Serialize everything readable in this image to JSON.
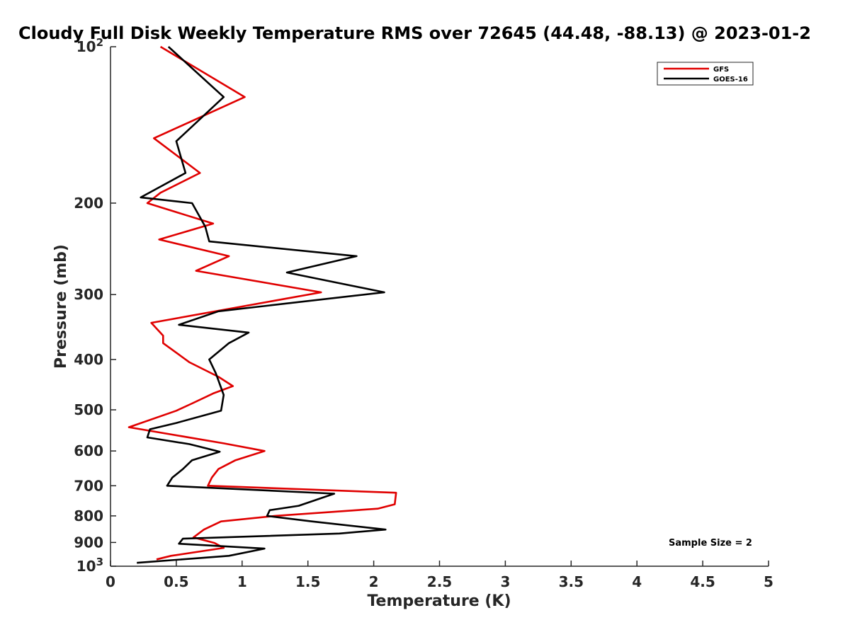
{
  "chart_data": {
    "type": "line",
    "title": "Cloudy Full Disk Weekly Temperature RMS over 72645 (44.48, -88.13) @ 2023-01-2",
    "xlabel": "Temperature (K)",
    "ylabel": "Pressure (mb)",
    "xlim": [
      0,
      5
    ],
    "ylim": [
      100,
      1000
    ],
    "yscale": "log",
    "y_reversed": true,
    "grid": false,
    "legend_position": "top-right",
    "x_ticks": [
      "0",
      "0.5",
      "1",
      "1.5",
      "2",
      "2.5",
      "3",
      "3.5",
      "4",
      "4.5",
      "5"
    ],
    "x_tick_values": [
      0,
      0.5,
      1,
      1.5,
      2,
      2.5,
      3,
      3.5,
      4,
      4.5,
      5
    ],
    "y_ticks": [
      {
        "value": 100,
        "label": "10",
        "sup": "2"
      },
      {
        "value": 200,
        "label": "200",
        "sup": ""
      },
      {
        "value": 300,
        "label": "300",
        "sup": ""
      },
      {
        "value": 400,
        "label": "400",
        "sup": ""
      },
      {
        "value": 500,
        "label": "500",
        "sup": ""
      },
      {
        "value": 600,
        "label": "600",
        "sup": ""
      },
      {
        "value": 700,
        "label": "700",
        "sup": ""
      },
      {
        "value": 800,
        "label": "800",
        "sup": ""
      },
      {
        "value": 900,
        "label": "900",
        "sup": ""
      },
      {
        "value": 1000,
        "label": "10",
        "sup": "3"
      }
    ],
    "series": [
      {
        "name": "GFS",
        "color": "#e00000",
        "points": [
          [
            0.38,
            100
          ],
          [
            1.02,
            125
          ],
          [
            0.33,
            150
          ],
          [
            0.68,
            175
          ],
          [
            0.38,
            191
          ],
          [
            0.28,
            200
          ],
          [
            0.78,
            219
          ],
          [
            0.37,
            235
          ],
          [
            0.9,
            253
          ],
          [
            0.65,
            270
          ],
          [
            1.6,
            297
          ],
          [
            0.31,
            340
          ],
          [
            0.4,
            360
          ],
          [
            0.4,
            372
          ],
          [
            0.6,
            405
          ],
          [
            0.82,
            432
          ],
          [
            0.93,
            450
          ],
          [
            0.78,
            465
          ],
          [
            0.62,
            486
          ],
          [
            0.5,
            502
          ],
          [
            0.14,
            540
          ],
          [
            0.86,
            580
          ],
          [
            1.17,
            600
          ],
          [
            0.95,
            625
          ],
          [
            0.82,
            650
          ],
          [
            0.77,
            675
          ],
          [
            0.74,
            700
          ],
          [
            2.17,
            722
          ],
          [
            2.16,
            760
          ],
          [
            2.03,
            775
          ],
          [
            1.25,
            800
          ],
          [
            0.84,
            820
          ],
          [
            0.71,
            850
          ],
          [
            0.63,
            880
          ],
          [
            0.79,
            902
          ],
          [
            0.86,
            922
          ],
          [
            0.46,
            955
          ],
          [
            0.35,
            970
          ]
        ]
      },
      {
        "name": "GOES-16",
        "color": "#000000",
        "points": [
          [
            0.44,
            100
          ],
          [
            0.86,
            125
          ],
          [
            0.5,
            152
          ],
          [
            0.57,
            175
          ],
          [
            0.23,
            195
          ],
          [
            0.62,
            200
          ],
          [
            0.72,
            222
          ],
          [
            0.75,
            237
          ],
          [
            1.87,
            253
          ],
          [
            1.34,
            272
          ],
          [
            2.08,
            297
          ],
          [
            0.82,
            323
          ],
          [
            0.52,
            343
          ],
          [
            1.05,
            355
          ],
          [
            0.9,
            372
          ],
          [
            0.75,
            400
          ],
          [
            0.8,
            425
          ],
          [
            0.86,
            468
          ],
          [
            0.84,
            502
          ],
          [
            0.5,
            530
          ],
          [
            0.3,
            545
          ],
          [
            0.28,
            565
          ],
          [
            0.6,
            582
          ],
          [
            0.83,
            602
          ],
          [
            0.62,
            625
          ],
          [
            0.55,
            650
          ],
          [
            0.47,
            675
          ],
          [
            0.43,
            700
          ],
          [
            1.7,
            725
          ],
          [
            1.43,
            765
          ],
          [
            1.21,
            780
          ],
          [
            1.19,
            800
          ],
          [
            1.53,
            820
          ],
          [
            2.09,
            850
          ],
          [
            1.74,
            865
          ],
          [
            0.55,
            885
          ],
          [
            0.52,
            905
          ],
          [
            1.17,
            925
          ],
          [
            0.9,
            955
          ],
          [
            0.2,
            985
          ]
        ]
      }
    ],
    "annotation": "Sample Size = 2"
  }
}
